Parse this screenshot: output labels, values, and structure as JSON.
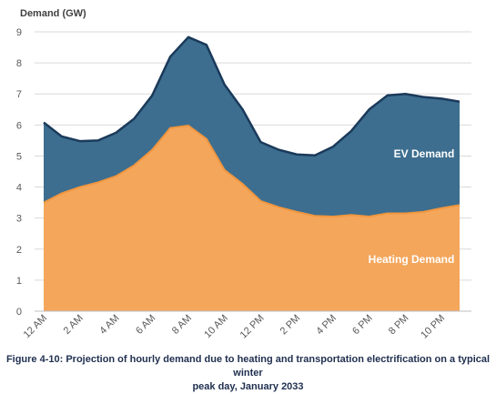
{
  "chart_data": {
    "type": "area",
    "stacked": true,
    "ylabel": "Demand (GW)",
    "ylim": [
      0,
      9
    ],
    "yticks": [
      "0",
      "1",
      "2",
      "3",
      "4",
      "5",
      "6",
      "7",
      "8",
      "9"
    ],
    "xtick_labels": [
      "12 AM",
      "2 AM",
      "4 AM",
      "6 AM",
      "8 AM",
      "10 AM",
      "12 PM",
      "2 PM",
      "4 PM",
      "6 PM",
      "8 PM",
      "10 PM"
    ],
    "x": [
      0,
      1,
      2,
      3,
      4,
      5,
      6,
      7,
      8,
      9,
      10,
      11,
      12,
      13,
      14,
      15,
      16,
      17,
      18,
      19,
      20,
      21,
      22,
      23
    ],
    "grid": true,
    "series": [
      {
        "name": "Heating Demand",
        "color": "#f4a65b",
        "values": [
          3.5,
          3.8,
          4.0,
          4.15,
          4.35,
          4.7,
          5.2,
          5.9,
          5.98,
          5.55,
          4.55,
          4.1,
          3.55,
          3.35,
          3.2,
          3.07,
          3.05,
          3.1,
          3.05,
          3.15,
          3.15,
          3.2,
          3.32,
          3.42
        ]
      },
      {
        "name": "EV Demand",
        "color": "#3d6e8f",
        "line_color": "#1b3a5a",
        "values": [
          2.58,
          1.83,
          1.48,
          1.35,
          1.4,
          1.5,
          1.75,
          2.3,
          2.85,
          3.03,
          2.75,
          2.4,
          1.9,
          1.85,
          1.85,
          1.95,
          2.25,
          2.7,
          3.45,
          3.8,
          3.85,
          3.7,
          3.53,
          3.33
        ]
      }
    ]
  },
  "caption": {
    "line1": "Figure 4-10: Projection of hourly demand due to heating and transportation electrification on a typical winter",
    "line2": "peak day, January 2033"
  }
}
